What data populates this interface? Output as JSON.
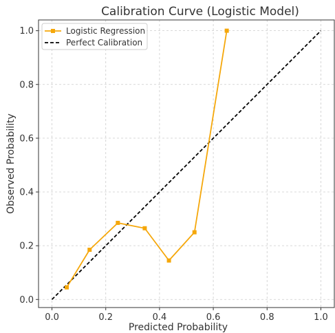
{
  "chart_data": {
    "type": "line",
    "title": "Calibration Curve (Logistic Model)",
    "xlabel": "Predicted Probability",
    "ylabel": "Observed Probability",
    "xlim": [
      -0.05,
      1.05
    ],
    "ylim": [
      -0.03,
      1.04
    ],
    "xticks": [
      0.0,
      0.2,
      0.4,
      0.6,
      0.8,
      1.0
    ],
    "yticks": [
      0.0,
      0.2,
      0.4,
      0.6,
      0.8,
      1.0
    ],
    "xtick_labels": [
      "0.0",
      "0.2",
      "0.4",
      "0.6",
      "0.8",
      "1.0"
    ],
    "ytick_labels": [
      "0.0",
      "0.2",
      "0.4",
      "0.6",
      "0.8",
      "1.0"
    ],
    "grid": true,
    "legend_position": "top-left",
    "series": [
      {
        "name": "Logistic Regression",
        "style": "solid-square-markers",
        "color": "#f5a70a",
        "x": [
          0.055,
          0.14,
          0.245,
          0.345,
          0.435,
          0.53,
          0.65
        ],
        "y": [
          0.045,
          0.185,
          0.285,
          0.265,
          0.145,
          0.25,
          1.0
        ]
      },
      {
        "name": "Perfect Calibration",
        "style": "dashed",
        "color": "#000000",
        "x": [
          0.0,
          1.0
        ],
        "y": [
          0.0,
          1.0
        ]
      }
    ]
  }
}
